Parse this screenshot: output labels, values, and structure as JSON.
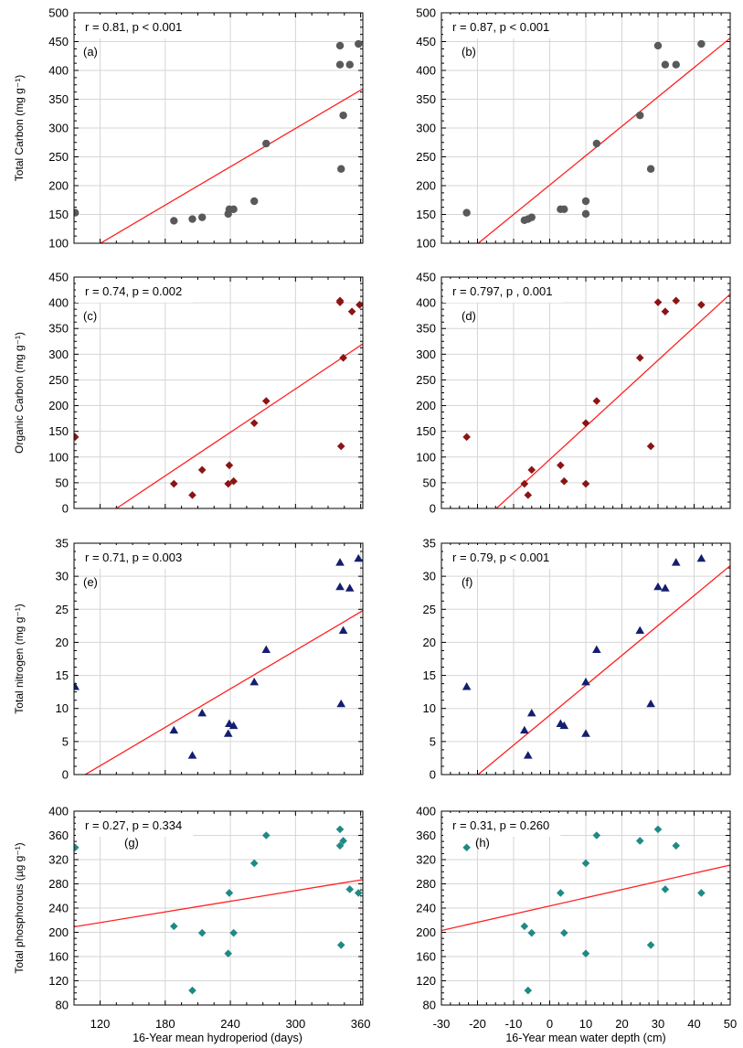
{
  "figure": {
    "xlabel_left": "16-Year mean hydroperiod (days)",
    "xlabel_right": "16-Year mean water depth (cm)"
  },
  "x_axes": {
    "left": {
      "lim": [
        96,
        362
      ],
      "ticks": [
        120,
        180,
        240,
        300,
        360
      ]
    },
    "right": {
      "lim": [
        -30,
        50
      ],
      "ticks": [
        -30,
        -20,
        -10,
        0,
        10,
        20,
        30,
        40,
        50
      ]
    }
  },
  "rows": [
    {
      "ylabel": "Total Carbon (mg g⁻¹)",
      "ylim": [
        100,
        500
      ],
      "yticks": [
        100,
        150,
        200,
        250,
        300,
        350,
        400,
        450,
        500
      ],
      "marker": "circle",
      "color": "#595959"
    },
    {
      "ylabel": "Organic Carbon (mg g⁻¹)",
      "ylim": [
        0,
        450
      ],
      "yticks": [
        0,
        50,
        100,
        150,
        200,
        250,
        300,
        350,
        400,
        450
      ],
      "marker": "diamond",
      "color": "#8b1414"
    },
    {
      "ylabel": "Total nitrogen (mg g⁻¹)",
      "ylim": [
        0,
        35
      ],
      "yticks": [
        0,
        5,
        10,
        15,
        20,
        25,
        30,
        35
      ],
      "marker": "triangle",
      "color": "#141e6e"
    },
    {
      "ylabel": "Total phosphorous (µg g⁻¹)",
      "ylim": [
        80,
        400
      ],
      "yticks": [
        80,
        120,
        160,
        200,
        240,
        280,
        320,
        360,
        400
      ],
      "marker": "diamond",
      "color": "#1f8a84"
    }
  ],
  "chart_data": [
    {
      "type": "scatter",
      "panel": "(a)",
      "stat": "r = 0.81, p < 0.001",
      "xlabel": "16-Year mean hydroperiod (days)",
      "ylabel": "Total Carbon (mg g⁻¹)",
      "xlim": [
        96,
        362
      ],
      "ylim": [
        100,
        500
      ],
      "fit": [
        [
          96,
          73
        ],
        [
          362,
          368
        ]
      ],
      "points": [
        [
          97,
          153
        ],
        [
          188,
          139
        ],
        [
          205,
          142
        ],
        [
          214,
          145
        ],
        [
          238,
          151
        ],
        [
          239,
          159
        ],
        [
          243,
          159
        ],
        [
          262,
          173
        ],
        [
          273,
          273
        ],
        [
          341,
          443
        ],
        [
          341,
          410
        ],
        [
          342,
          229
        ],
        [
          344,
          322
        ],
        [
          350,
          410
        ],
        [
          358,
          446
        ]
      ]
    },
    {
      "type": "scatter",
      "panel": "(b)",
      "stat": "r = 0.87, p < 0.001",
      "xlabel": "16-Year mean water depth (cm)",
      "ylabel": "",
      "xlim": [
        -30,
        50
      ],
      "ylim": [
        100,
        500
      ],
      "fit": [
        [
          -30,
          48
        ],
        [
          50,
          456
        ]
      ],
      "points": [
        [
          -23,
          153
        ],
        [
          -7,
          140
        ],
        [
          -6,
          142
        ],
        [
          -5,
          145
        ],
        [
          3,
          159
        ],
        [
          4,
          159
        ],
        [
          10,
          151
        ],
        [
          10,
          173
        ],
        [
          13,
          273
        ],
        [
          25,
          322
        ],
        [
          28,
          229
        ],
        [
          30,
          443
        ],
        [
          32,
          410
        ],
        [
          35,
          410
        ],
        [
          42,
          446
        ]
      ]
    },
    {
      "type": "scatter",
      "panel": "(c)",
      "stat": "r = 0.74, p = 0.002",
      "xlabel": "16-Year mean hydroperiod (days)",
      "ylabel": "Organic Carbon (mg g⁻¹)",
      "xlim": [
        96,
        362
      ],
      "ylim": [
        0,
        450
      ],
      "fit": [
        [
          96,
          -55
        ],
        [
          362,
          320
        ]
      ],
      "points": [
        [
          97,
          139
        ],
        [
          188,
          48
        ],
        [
          205,
          26
        ],
        [
          214,
          75
        ],
        [
          238,
          48
        ],
        [
          239,
          84
        ],
        [
          243,
          53
        ],
        [
          262,
          166
        ],
        [
          273,
          209
        ],
        [
          341,
          404
        ],
        [
          341,
          401
        ],
        [
          342,
          121
        ],
        [
          344,
          293
        ],
        [
          352,
          383
        ],
        [
          359,
          396
        ]
      ]
    },
    {
      "type": "scatter",
      "panel": "(d)",
      "stat": "r = 0.797, p , 0.001",
      "xlabel": "16-Year mean water depth (cm)",
      "ylabel": "",
      "xlim": [
        -30,
        50
      ],
      "ylim": [
        0,
        450
      ],
      "fit": [
        [
          -30,
          -98
        ],
        [
          50,
          417
        ]
      ],
      "points": [
        [
          -23,
          139
        ],
        [
          -7,
          48
        ],
        [
          -6,
          26
        ],
        [
          -5,
          75
        ],
        [
          3,
          84
        ],
        [
          4,
          53
        ],
        [
          10,
          48
        ],
        [
          10,
          166
        ],
        [
          13,
          209
        ],
        [
          25,
          293
        ],
        [
          28,
          121
        ],
        [
          30,
          401
        ],
        [
          32,
          383
        ],
        [
          35,
          404
        ],
        [
          42,
          396
        ]
      ]
    },
    {
      "type": "scatter",
      "panel": "(e)",
      "stat": "r = 0.71, p = 0.003",
      "xlabel": "16-Year mean hydroperiod (days)",
      "ylabel": "Total nitrogen (mg g⁻¹)",
      "xlim": [
        96,
        362
      ],
      "ylim": [
        0,
        35
      ],
      "fit": [
        [
          96,
          -1.0
        ],
        [
          362,
          24.8
        ]
      ],
      "points": [
        [
          97,
          13.3
        ],
        [
          188,
          6.7
        ],
        [
          205,
          2.9
        ],
        [
          214,
          9.3
        ],
        [
          238,
          6.2
        ],
        [
          239,
          7.7
        ],
        [
          243,
          7.4
        ],
        [
          262,
          14.0
        ],
        [
          273,
          18.9
        ],
        [
          341,
          32.1
        ],
        [
          341,
          28.4
        ],
        [
          342,
          10.7
        ],
        [
          344,
          21.8
        ],
        [
          350,
          28.2
        ],
        [
          358,
          32.7
        ]
      ]
    },
    {
      "type": "scatter",
      "panel": "(f)",
      "stat": "r = 0.79, p < 0.001",
      "xlabel": "16-Year mean water depth (cm)",
      "ylabel": "",
      "xlim": [
        -30,
        50
      ],
      "ylim": [
        0,
        35
      ],
      "fit": [
        [
          -30,
          -4.6
        ],
        [
          50,
          31.6
        ]
      ],
      "points": [
        [
          -23,
          13.3
        ],
        [
          -7,
          6.7
        ],
        [
          -6,
          2.9
        ],
        [
          -5,
          9.3
        ],
        [
          3,
          7.7
        ],
        [
          4,
          7.4
        ],
        [
          10,
          6.2
        ],
        [
          10,
          14.0
        ],
        [
          13,
          18.9
        ],
        [
          25,
          21.8
        ],
        [
          28,
          10.7
        ],
        [
          30,
          28.4
        ],
        [
          32,
          28.2
        ],
        [
          35,
          32.1
        ],
        [
          42,
          32.7
        ]
      ]
    },
    {
      "type": "scatter",
      "panel": "(g)",
      "stat": "r = 0.27, p = 0.334",
      "xlabel": "16-Year mean hydroperiod (days)",
      "ylabel": "Total phosphorous (µg g⁻¹)",
      "xlim": [
        96,
        362
      ],
      "ylim": [
        80,
        400
      ],
      "fit": [
        [
          96,
          209
        ],
        [
          362,
          287
        ]
      ],
      "points": [
        [
          97,
          340
        ],
        [
          188,
          210
        ],
        [
          205,
          104
        ],
        [
          214,
          199
        ],
        [
          238,
          165
        ],
        [
          239,
          265
        ],
        [
          243,
          199
        ],
        [
          262,
          314
        ],
        [
          273,
          360
        ],
        [
          341,
          370
        ],
        [
          341,
          343
        ],
        [
          342,
          179
        ],
        [
          344,
          351
        ],
        [
          350,
          271
        ],
        [
          358,
          265
        ]
      ]
    },
    {
      "type": "scatter",
      "panel": "(h)",
      "stat": "r = 0.31, p = 0.260",
      "xlabel": "16-Year mean water depth (cm)",
      "ylabel": "",
      "xlim": [
        -30,
        50
      ],
      "ylim": [
        80,
        400
      ],
      "fit": [
        [
          -30,
          203
        ],
        [
          50,
          311
        ]
      ],
      "points": [
        [
          -23,
          340
        ],
        [
          -7,
          210
        ],
        [
          -6,
          104
        ],
        [
          -5,
          199
        ],
        [
          3,
          265
        ],
        [
          4,
          199
        ],
        [
          10,
          165
        ],
        [
          10,
          314
        ],
        [
          13,
          360
        ],
        [
          25,
          351
        ],
        [
          28,
          179
        ],
        [
          30,
          370
        ],
        [
          32,
          271
        ],
        [
          35,
          343
        ],
        [
          42,
          265
        ]
      ]
    }
  ]
}
